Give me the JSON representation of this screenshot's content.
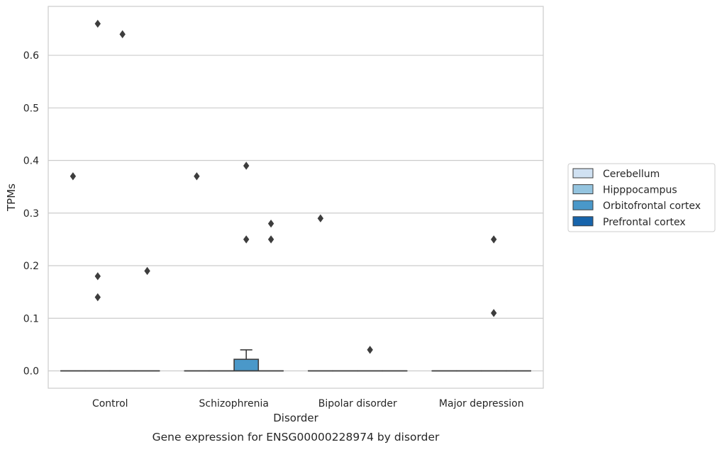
{
  "chart_data": {
    "type": "box",
    "caption": "Gene expression for ENSG00000228974 by disorder",
    "xlabel": "Disorder",
    "ylabel": "TPMs",
    "ylim": [
      -0.033,
      0.693
    ],
    "yticks": [
      0.0,
      0.1,
      0.2,
      0.3,
      0.4,
      0.5,
      0.6
    ],
    "ytick_labels": [
      "0.0",
      "0.1",
      "0.2",
      "0.3",
      "0.4",
      "0.5",
      "0.6"
    ],
    "grid": "horizontal",
    "legend_position": "right",
    "categories": [
      "Control",
      "Schizophrenia",
      "Bipolar disorder",
      "Major depression"
    ],
    "series": [
      {
        "name": "Cerebellum",
        "color": "#d0e1f2",
        "boxes": [
          {
            "q1": 0,
            "median": 0,
            "q3": 0,
            "whisker_low": 0,
            "whisker_high": 0,
            "outliers": [
              0.37
            ]
          },
          {
            "q1": 0,
            "median": 0,
            "q3": 0,
            "whisker_low": 0,
            "whisker_high": 0,
            "outliers": [
              0.37
            ]
          },
          {
            "q1": 0,
            "median": 0,
            "q3": 0,
            "whisker_low": 0,
            "whisker_high": 0,
            "outliers": [
              0.29
            ]
          },
          {
            "q1": 0,
            "median": 0,
            "q3": 0,
            "whisker_low": 0,
            "whisker_high": 0,
            "outliers": []
          }
        ]
      },
      {
        "name": "Hipppocampus",
        "color": "#94c4df",
        "boxes": [
          {
            "q1": 0,
            "median": 0,
            "q3": 0,
            "whisker_low": 0,
            "whisker_high": 0,
            "outliers": [
              0.66,
              0.18,
              0.14
            ]
          },
          {
            "q1": 0,
            "median": 0,
            "q3": 0,
            "whisker_low": 0,
            "whisker_high": 0,
            "outliers": []
          },
          {
            "q1": 0,
            "median": 0,
            "q3": 0,
            "whisker_low": 0,
            "whisker_high": 0,
            "outliers": []
          },
          {
            "q1": 0,
            "median": 0,
            "q3": 0,
            "whisker_low": 0,
            "whisker_high": 0,
            "outliers": []
          }
        ]
      },
      {
        "name": "Orbitofrontal cortex",
        "color": "#4a98c9",
        "boxes": [
          {
            "q1": 0,
            "median": 0,
            "q3": 0,
            "whisker_low": 0,
            "whisker_high": 0,
            "outliers": [
              0.64
            ]
          },
          {
            "q1": 0,
            "median": 0,
            "q3": 0.022,
            "whisker_low": 0,
            "whisker_high": 0.04,
            "outliers": [
              0.39,
              0.25
            ]
          },
          {
            "q1": 0,
            "median": 0,
            "q3": 0,
            "whisker_low": 0,
            "whisker_high": 0,
            "outliers": [
              0.04
            ]
          },
          {
            "q1": 0,
            "median": 0,
            "q3": 0,
            "whisker_low": 0,
            "whisker_high": 0,
            "outliers": [
              0.25,
              0.11
            ]
          }
        ]
      },
      {
        "name": "Prefrontal cortex",
        "color": "#1764ab",
        "boxes": [
          {
            "q1": 0,
            "median": 0,
            "q3": 0,
            "whisker_low": 0,
            "whisker_high": 0,
            "outliers": [
              0.19
            ]
          },
          {
            "q1": 0,
            "median": 0,
            "q3": 0,
            "whisker_low": 0,
            "whisker_high": 0,
            "outliers": [
              0.28,
              0.25
            ]
          },
          {
            "q1": 0,
            "median": 0,
            "q3": 0,
            "whisker_low": 0,
            "whisker_high": 0,
            "outliers": []
          },
          {
            "q1": 0,
            "median": 0,
            "q3": 0,
            "whisker_low": 0,
            "whisker_high": 0,
            "outliers": []
          }
        ]
      }
    ]
  }
}
